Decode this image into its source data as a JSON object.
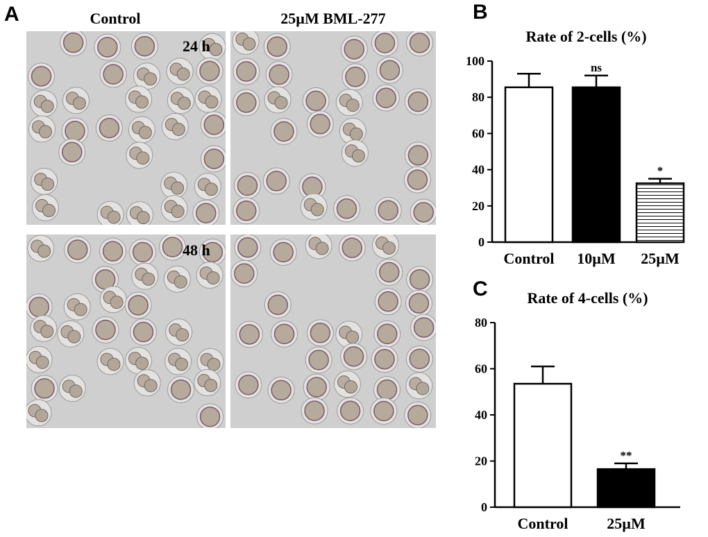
{
  "panels": {
    "a": {
      "letter": "A",
      "column_titles": [
        "Control",
        "25µM BML-277"
      ],
      "time_labels": [
        "24 h",
        "48 h"
      ]
    },
    "b": {
      "letter": "B"
    },
    "c": {
      "letter": "C"
    }
  },
  "chart_data": [
    {
      "type": "bar",
      "title": "Rate of 2-cells (%)",
      "categories": [
        "Control",
        "10µM",
        "25µM"
      ],
      "values": [
        85.5,
        85.5,
        32.5
      ],
      "errors": [
        7.5,
        6.5,
        2.5
      ],
      "fills": [
        "open",
        "solid",
        "striped"
      ],
      "annotations": [
        "",
        "ns",
        "*"
      ],
      "ylim": [
        0,
        100
      ],
      "yticks": [
        0,
        20,
        40,
        60,
        80,
        100
      ],
      "xlabel": "",
      "ylabel": ""
    },
    {
      "type": "bar",
      "title": "Rate of 4-cells (%)",
      "categories": [
        "Control",
        "25µM"
      ],
      "values": [
        53.5,
        16.5
      ],
      "errors": [
        7.5,
        2.5
      ],
      "fills": [
        "open",
        "solid"
      ],
      "annotations": [
        "",
        "**"
      ],
      "ylim": [
        0,
        80
      ],
      "yticks": [
        0,
        20,
        40,
        60,
        80
      ],
      "xlabel": "",
      "ylabel": ""
    }
  ]
}
